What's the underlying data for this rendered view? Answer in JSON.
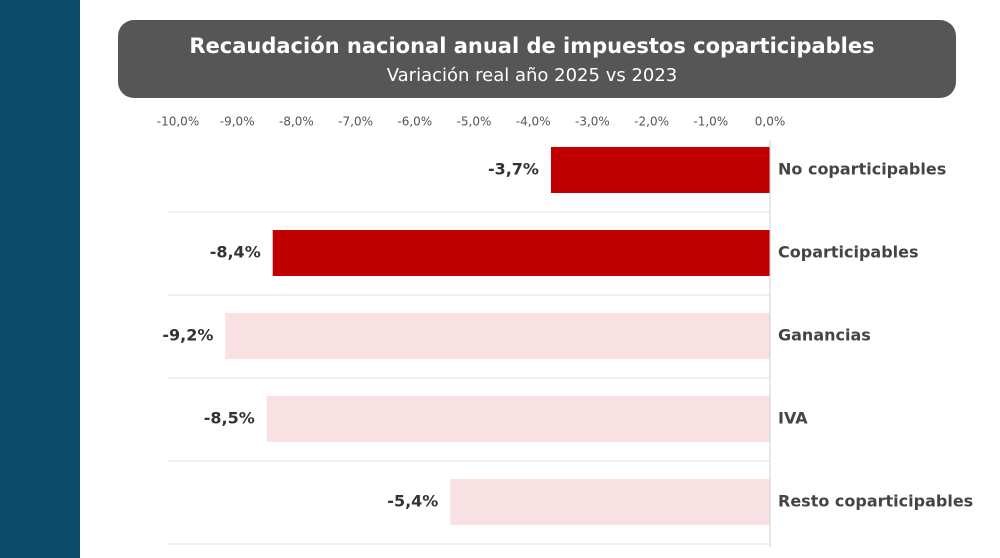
{
  "chart_data": {
    "type": "hbar",
    "title": "Recaudación nacional anual de impuestos coparticipables",
    "subtitle": "Variación real año 2025 vs 2023",
    "categories": [
      "No coparticipables",
      "Coparticipables",
      "Ganancias",
      "IVA",
      "Resto coparticipables"
    ],
    "values": [
      -3.7,
      -8.4,
      -9.2,
      -8.5,
      -5.4
    ],
    "value_labels": [
      "-3,7%",
      "-8,4%",
      "-9,2%",
      "-8,5%",
      "-5,4%"
    ],
    "colors": [
      "#c00000",
      "#c00000",
      "#f9e1e3",
      "#f9e1e3",
      "#f9e1e3"
    ],
    "xlim": [
      -10,
      0
    ],
    "xticks": [
      {
        "value": -10,
        "label": "-10,0%"
      },
      {
        "value": -9,
        "label": "-9,0%"
      },
      {
        "value": -8,
        "label": "-8,0%"
      },
      {
        "value": -7,
        "label": "-7,0%"
      },
      {
        "value": -6,
        "label": "-6,0%"
      },
      {
        "value": -5,
        "label": "-5,0%"
      },
      {
        "value": -4,
        "label": "-4,0%"
      },
      {
        "value": -3,
        "label": "-3,0%"
      },
      {
        "value": -2,
        "label": "-2,0%"
      },
      {
        "value": -1,
        "label": "-1,0%"
      },
      {
        "value": 0,
        "label": "0,0%"
      }
    ],
    "grid": false
  }
}
